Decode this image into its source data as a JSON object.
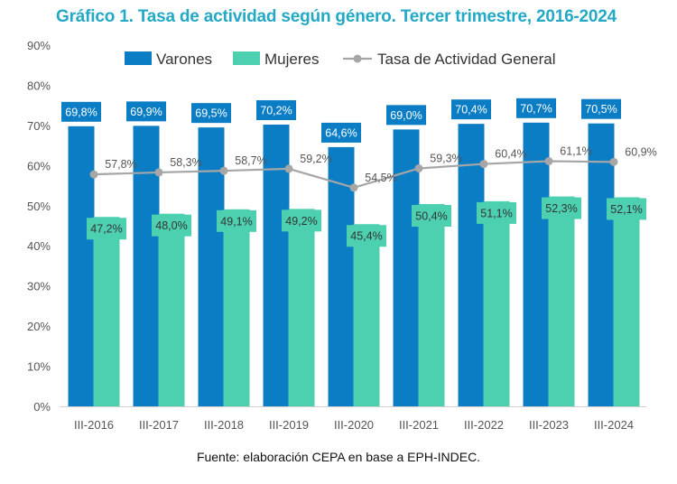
{
  "title": "Gráfico 1. Tasa de actividad según género. Tercer trimestre, 2016-2024",
  "source": "Fuente: elaboración CEPA en base a EPH-INDEC.",
  "colors": {
    "varones": "#0b7dc4",
    "mujeres": "#4dd0b0",
    "general": "#a6a6a6",
    "title": "#23a9c6"
  },
  "chart_data": {
    "type": "bar",
    "title": "Gráfico 1. Tasa de actividad según género. Tercer trimestre, 2016-2024",
    "xlabel": "",
    "ylabel": "",
    "ylim": [
      0,
      90
    ],
    "y_ticks": [
      "0%",
      "10%",
      "20%",
      "30%",
      "40%",
      "50%",
      "60%",
      "70%",
      "80%",
      "90%"
    ],
    "grid": false,
    "legend": "top",
    "categories": [
      "III-2016",
      "III-2017",
      "III-2018",
      "III-2019",
      "III-2020",
      "III-2021",
      "III-2022",
      "III-2023",
      "III-2024"
    ],
    "series": [
      {
        "name": "Varones",
        "kind": "bar",
        "values": [
          69.8,
          69.9,
          69.5,
          70.2,
          64.6,
          69.0,
          70.4,
          70.7,
          70.5
        ],
        "labels": [
          "69,8%",
          "69,9%",
          "69,5%",
          "70,2%",
          "64,6%",
          "69,0%",
          "70,4%",
          "70,7%",
          "70,5%"
        ]
      },
      {
        "name": "Mujeres",
        "kind": "bar",
        "values": [
          47.2,
          48.0,
          49.1,
          49.2,
          45.4,
          50.4,
          51.1,
          52.3,
          52.1
        ],
        "labels": [
          "47,2%",
          "48,0%",
          "49,1%",
          "49,2%",
          "45,4%",
          "50,4%",
          "51,1%",
          "52,3%",
          "52,1%"
        ]
      },
      {
        "name": "Tasa de Actividad General",
        "kind": "line",
        "values": [
          57.8,
          58.3,
          58.7,
          59.2,
          54.5,
          59.3,
          60.4,
          61.1,
          60.9
        ],
        "labels": [
          "57,8%",
          "58,3%",
          "58,7%",
          "59,2%",
          "54,5%",
          "59,3%",
          "60,4%",
          "61,1%",
          "60,9%"
        ]
      }
    ]
  }
}
